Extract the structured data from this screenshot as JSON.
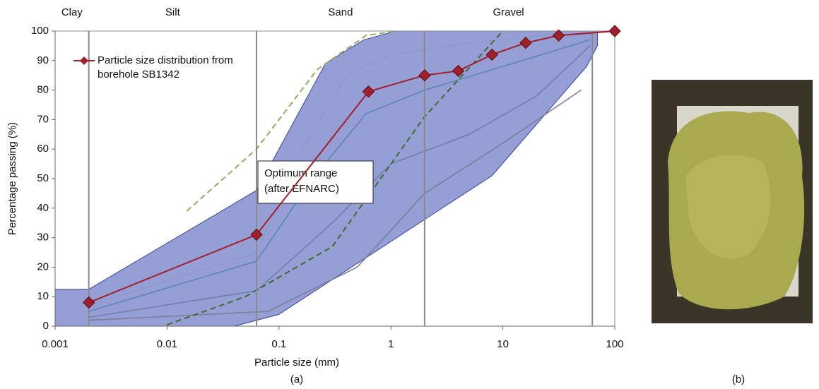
{
  "chart_data": {
    "type": "line",
    "xlabel": "Particle size (mm)",
    "ylabel": "Percentage passing (%)",
    "caption": "(a)",
    "xscale": "log",
    "xlim": [
      0.001,
      100
    ],
    "ylim": [
      0,
      100
    ],
    "xticks": [
      0.001,
      0.01,
      0.1,
      1,
      10,
      100
    ],
    "yticks": [
      0,
      10,
      20,
      30,
      40,
      50,
      60,
      70,
      80,
      90,
      100
    ],
    "zones": {
      "labels": [
        "Clay",
        "Silt",
        "Sand",
        "Gravel"
      ],
      "boundaries": [
        0.002,
        0.063,
        2,
        63
      ],
      "color": "#8a8a8a"
    },
    "envelope": {
      "x": [
        0.001,
        0.001,
        0.002,
        0.063,
        0.26,
        0.57,
        1.1,
        70,
        70,
        56,
        8,
        0.1,
        0.04
      ],
      "y": [
        0,
        12.5,
        12.5,
        46,
        89,
        97,
        100,
        100,
        95,
        88,
        51,
        4,
        0
      ],
      "color": "#7c86cc"
    },
    "optimum_lines": [
      {
        "x": [
          0.015,
          0.063,
          0.22,
          0.6,
          1.1
        ],
        "y": [
          39,
          60,
          87,
          98.5,
          100
        ],
        "color": "#8fae62"
      },
      {
        "x": [
          0.01,
          0.05,
          0.3,
          2,
          10
        ],
        "y": [
          0.5,
          10,
          27,
          71,
          100
        ],
        "color": "#3f6b2a"
      }
    ],
    "background_curves": [
      {
        "x": [
          0.002,
          0.063,
          0.2,
          0.6,
          2,
          10,
          60
        ],
        "y": [
          5,
          22,
          50,
          72,
          80,
          88,
          97
        ],
        "color": "#5b86b8"
      },
      {
        "x": [
          0.002,
          0.063,
          0.3,
          1,
          5,
          20,
          60
        ],
        "y": [
          3,
          12,
          35,
          55,
          65,
          78,
          95
        ],
        "color": "#6f7fa8"
      },
      {
        "x": [
          0.002,
          0.063,
          0.15,
          0.4,
          1,
          5,
          30
        ],
        "y": [
          7,
          25,
          58,
          85,
          92,
          96,
          99
        ],
        "color": "#8a9cc8"
      },
      {
        "x": [
          0.002,
          0.08,
          0.5,
          2,
          10,
          50
        ],
        "y": [
          2,
          5,
          20,
          45,
          62,
          80
        ],
        "color": "#7a7f98"
      }
    ],
    "series": [
      {
        "name": "Particle size distribution from borehole SB1342",
        "color": "#a01f2b",
        "x": [
          0.002,
          0.063,
          0.63,
          2,
          4,
          8,
          16,
          31.5,
          100
        ],
        "values": [
          8,
          31,
          79.5,
          85,
          86.5,
          92,
          96,
          98.5,
          100
        ]
      }
    ],
    "annotation": [
      "Optimum range",
      "(after EFNARC)"
    ],
    "photo_caption": "(b)"
  }
}
